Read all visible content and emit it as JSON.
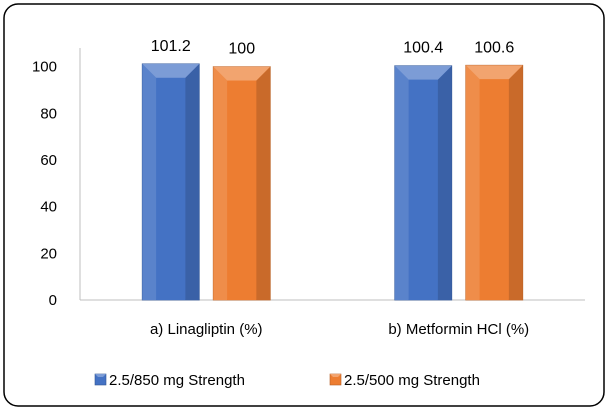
{
  "chart_data": {
    "type": "bar",
    "categories": [
      "a)     Linagliptin (%)",
      "b)     Metformin HCl (%)"
    ],
    "series": [
      {
        "name": "2.5/850 mg Strength",
        "values": [
          101.2,
          100.4
        ],
        "color": "#4472C4"
      },
      {
        "name": "2.5/500 mg Strength",
        "values": [
          100,
          100.6
        ],
        "color": "#ED7D31"
      }
    ],
    "data_labels": [
      [
        "101.2",
        "100.4"
      ],
      [
        "100",
        "100.6"
      ]
    ],
    "y_ticks": [
      "0",
      "20",
      "40",
      "60",
      "80",
      "100"
    ],
    "ylim": [
      0,
      120
    ],
    "grid": false,
    "legend_position": "bottom"
  }
}
